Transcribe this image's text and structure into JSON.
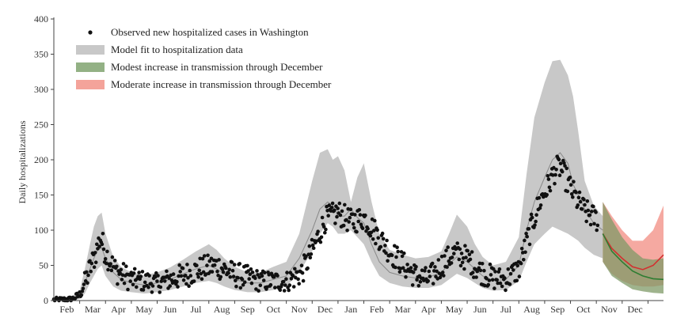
{
  "chart_data": {
    "type": "line",
    "ylabel": "Daily hospitalizations",
    "ylim": [
      0,
      400
    ],
    "y_ticks": [
      0,
      50,
      100,
      150,
      200,
      250,
      300,
      350,
      400
    ],
    "x_tick_labels": [
      "Feb",
      "Mar",
      "Apr",
      "May",
      "Jun",
      "Jul",
      "Aug",
      "Sep",
      "Oct",
      "Nov",
      "Dec",
      "Jan",
      "Feb",
      "Mar",
      "Apr",
      "May",
      "Jun",
      "Jul",
      "Aug",
      "Sep",
      "Oct",
      "Nov",
      "Dec"
    ],
    "x_domain_months": [
      0,
      23.6
    ],
    "grid": false,
    "legend_position": "top-left",
    "legend": [
      {
        "label": "Observed new hospitalized cases in Washington",
        "kind": "dot",
        "color": "#111111"
      },
      {
        "label": "Model fit to hospitalization data",
        "kind": "band",
        "color": "#c8c8c8"
      },
      {
        "label": "Modest increase in transmission through December",
        "kind": "band",
        "color": "#93b185"
      },
      {
        "label": "Moderate increase in transmission through December",
        "kind": "band",
        "color": "#f4a39a"
      }
    ],
    "colors": {
      "model_band": "#c8c8c8",
      "model_line": "#888888",
      "observed": "#111111",
      "modest_band": "#7f9a67",
      "modest_line": "#2e7d32",
      "moderate_band": "#f39a90",
      "moderate_line": "#d32f2f",
      "overlap_band": "#a0784a"
    },
    "model_fit": {
      "x": [
        0,
        0.6,
        1.0,
        1.2,
        1.4,
        1.55,
        1.7,
        1.85,
        2.0,
        2.3,
        2.6,
        3.0,
        3.5,
        4.0,
        4.5,
        5.0,
        5.5,
        6.0,
        6.3,
        6.6,
        7.0,
        7.5,
        8.0,
        8.5,
        9.0,
        9.5,
        10.0,
        10.3,
        10.6,
        10.8,
        11.0,
        11.25,
        11.5,
        11.75,
        12.0,
        12.3,
        12.6,
        13.0,
        13.5,
        14.0,
        14.5,
        15.0,
        15.3,
        15.6,
        16.0,
        16.3,
        16.6,
        17.0,
        17.5,
        18.0,
        18.3,
        18.6,
        19.0,
        19.3,
        19.6,
        19.9,
        20.1,
        20.3,
        20.55,
        20.9,
        21.25
      ],
      "mid": [
        1,
        2,
        8,
        25,
        45,
        60,
        72,
        75,
        60,
        40,
        30,
        25,
        22,
        25,
        30,
        38,
        45,
        50,
        45,
        38,
        30,
        25,
        25,
        30,
        35,
        60,
        100,
        130,
        140,
        135,
        120,
        120,
        130,
        118,
        110,
        80,
        55,
        40,
        35,
        32,
        33,
        40,
        52,
        62,
        55,
        45,
        35,
        28,
        30,
        50,
        100,
        140,
        175,
        200,
        210,
        195,
        165,
        150,
        130,
        110,
        100
      ],
      "lower": [
        0,
        0,
        2,
        10,
        25,
        35,
        45,
        50,
        35,
        20,
        14,
        12,
        10,
        12,
        15,
        20,
        25,
        28,
        25,
        20,
        15,
        12,
        12,
        15,
        20,
        40,
        70,
        95,
        110,
        105,
        95,
        95,
        100,
        90,
        80,
        55,
        35,
        25,
        20,
        18,
        18,
        22,
        30,
        38,
        32,
        25,
        18,
        14,
        15,
        28,
        55,
        80,
        95,
        105,
        100,
        95,
        90,
        85,
        75,
        65,
        60
      ],
      "upper": [
        2,
        4,
        14,
        45,
        80,
        105,
        120,
        125,
        95,
        62,
        48,
        40,
        36,
        40,
        47,
        58,
        70,
        80,
        72,
        60,
        48,
        40,
        40,
        48,
        55,
        95,
        170,
        210,
        215,
        200,
        205,
        185,
        140,
        175,
        195,
        140,
        95,
        72,
        65,
        60,
        62,
        70,
        95,
        122,
        105,
        80,
        62,
        50,
        55,
        90,
        180,
        260,
        310,
        340,
        342,
        320,
        290,
        240,
        170,
        135,
        120
      ]
    },
    "observed": {
      "anchors_x": [
        0,
        0.7,
        1.0,
        1.3,
        1.6,
        1.8,
        2.0,
        2.4,
        3.0,
        4.0,
        5.0,
        5.7,
        6.3,
        7.0,
        8.0,
        9.0,
        9.6,
        10.0,
        10.5,
        11.0,
        11.5,
        12.0,
        12.5,
        13.0,
        14.0,
        14.5,
        15.0,
        15.5,
        16.0,
        16.5,
        17.0,
        17.5,
        18.0,
        18.4,
        18.8,
        19.1,
        19.4,
        19.6,
        20.0,
        20.3,
        20.6,
        21.05
      ],
      "anchors_y": [
        1,
        2,
        8,
        35,
        65,
        90,
        68,
        42,
        30,
        25,
        35,
        45,
        50,
        37,
        28,
        27,
        40,
        70,
        115,
        125,
        112,
        118,
        95,
        70,
        35,
        30,
        50,
        68,
        60,
        42,
        32,
        30,
        45,
        95,
        140,
        160,
        185,
        190,
        160,
        140,
        125,
        115
      ],
      "points_per_month": 30,
      "jitter": 18
    },
    "projection": {
      "x": [
        21.25,
        21.6,
        22.0,
        22.4,
        22.8,
        23.2,
        23.6
      ],
      "modest": {
        "mid": [
          95,
          70,
          55,
          42,
          35,
          31,
          30
        ],
        "lower": [
          55,
          35,
          25,
          16,
          13,
          11,
          10
        ],
        "upper": [
          140,
          115,
          90,
          72,
          60,
          58,
          60
        ]
      },
      "moderate": {
        "mid": [
          95,
          74,
          60,
          48,
          44,
          50,
          65
        ],
        "lower": [
          55,
          38,
          28,
          22,
          20,
          20,
          22
        ],
        "upper": [
          140,
          120,
          100,
          85,
          85,
          100,
          135
        ]
      }
    }
  }
}
